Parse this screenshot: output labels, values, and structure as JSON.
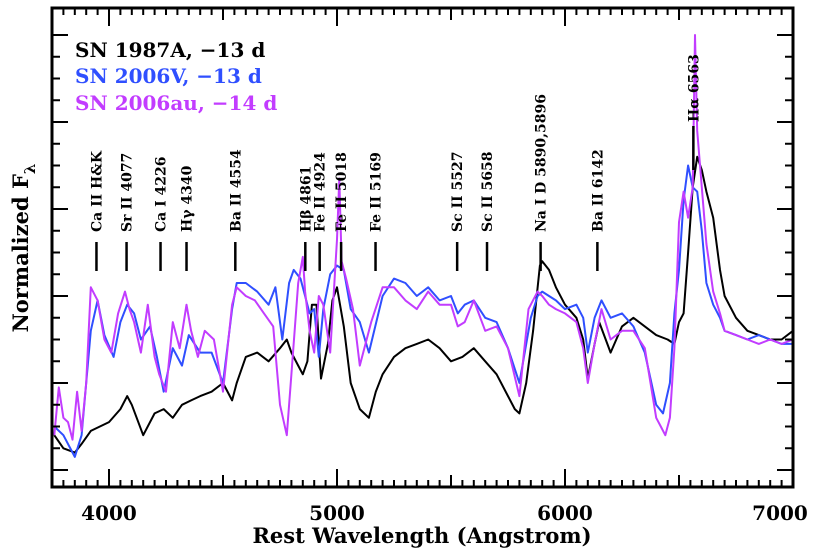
{
  "chart_data": {
    "type": "line",
    "title": "",
    "xlabel": "Rest Wavelength (Angstrom)",
    "ylabel": "Normalized F",
    "ylabel_subscript": "λ",
    "xlim": [
      3750,
      7000
    ],
    "ylim": [
      0,
      1
    ],
    "xticks": [
      {
        "value": 4000,
        "label": "4000"
      },
      {
        "value": 5000,
        "label": "5000"
      },
      {
        "value": 6000,
        "label": "6000"
      },
      {
        "value": 7000,
        "label": "7000"
      }
    ],
    "legend_position": "top-left",
    "series": [
      {
        "name": "SN 1987A, −13 d",
        "color": "#000000",
        "x": [
          3760,
          3800,
          3850,
          3880,
          3920,
          3960,
          4000,
          4050,
          4080,
          4100,
          4150,
          4200,
          4240,
          4280,
          4320,
          4360,
          4400,
          4450,
          4500,
          4540,
          4560,
          4600,
          4650,
          4700,
          4750,
          4780,
          4800,
          4830,
          4850,
          4870,
          4890,
          4910,
          4930,
          4960,
          4980,
          5000,
          5030,
          5060,
          5100,
          5140,
          5170,
          5200,
          5250,
          5300,
          5350,
          5400,
          5450,
          5500,
          5550,
          5600,
          5650,
          5700,
          5750,
          5780,
          5800,
          5830,
          5860,
          5890,
          5900,
          5930,
          5960,
          6000,
          6050,
          6080,
          6100,
          6130,
          6150,
          6200,
          6250,
          6300,
          6350,
          6400,
          6450,
          6480,
          6500,
          6520,
          6540,
          6560,
          6580,
          6600,
          6620,
          6650,
          6680,
          6700,
          6750,
          6800,
          6850,
          6900,
          6950,
          7000
        ],
        "y": [
          0.08,
          0.05,
          0.04,
          0.06,
          0.09,
          0.1,
          0.11,
          0.14,
          0.17,
          0.15,
          0.08,
          0.13,
          0.14,
          0.12,
          0.15,
          0.16,
          0.17,
          0.18,
          0.2,
          0.16,
          0.2,
          0.26,
          0.27,
          0.25,
          0.28,
          0.3,
          0.27,
          0.24,
          0.22,
          0.25,
          0.38,
          0.38,
          0.21,
          0.29,
          0.39,
          0.42,
          0.33,
          0.2,
          0.14,
          0.12,
          0.18,
          0.22,
          0.26,
          0.28,
          0.29,
          0.3,
          0.28,
          0.25,
          0.26,
          0.28,
          0.25,
          0.22,
          0.17,
          0.14,
          0.13,
          0.2,
          0.32,
          0.47,
          0.48,
          0.46,
          0.42,
          0.38,
          0.35,
          0.3,
          0.21,
          0.29,
          0.34,
          0.27,
          0.33,
          0.35,
          0.33,
          0.31,
          0.3,
          0.29,
          0.34,
          0.36,
          0.5,
          0.65,
          0.72,
          0.69,
          0.64,
          0.58,
          0.46,
          0.4,
          0.35,
          0.32,
          0.31,
          0.3,
          0.3,
          0.32
        ]
      },
      {
        "name": "SN 2006V, −13 d",
        "color": "#2f4fff",
        "x": [
          3760,
          3800,
          3850,
          3880,
          3920,
          3950,
          3980,
          4020,
          4050,
          4080,
          4110,
          4140,
          4180,
          4210,
          4240,
          4280,
          4320,
          4350,
          4400,
          4450,
          4500,
          4540,
          4560,
          4600,
          4650,
          4700,
          4730,
          4760,
          4790,
          4810,
          4840,
          4860,
          4880,
          4900,
          4920,
          4940,
          4970,
          5000,
          5030,
          5060,
          5100,
          5140,
          5200,
          5250,
          5300,
          5350,
          5400,
          5450,
          5500,
          5530,
          5560,
          5600,
          5650,
          5700,
          5750,
          5800,
          5850,
          5880,
          5900,
          5930,
          5960,
          6000,
          6050,
          6080,
          6100,
          6130,
          6160,
          6200,
          6250,
          6300,
          6350,
          6400,
          6430,
          6460,
          6480,
          6500,
          6520,
          6540,
          6560,
          6580,
          6600,
          6620,
          6650,
          6680,
          6700,
          6750,
          6800,
          6850,
          6900,
          6950,
          7000
        ],
        "y": [
          0.1,
          0.08,
          0.03,
          0.08,
          0.32,
          0.39,
          0.31,
          0.26,
          0.34,
          0.38,
          0.36,
          0.3,
          0.33,
          0.26,
          0.18,
          0.28,
          0.24,
          0.31,
          0.27,
          0.27,
          0.2,
          0.37,
          0.43,
          0.43,
          0.41,
          0.38,
          0.42,
          0.3,
          0.43,
          0.46,
          0.44,
          0.4,
          0.36,
          0.37,
          0.26,
          0.37,
          0.45,
          0.47,
          0.46,
          0.37,
          0.34,
          0.27,
          0.4,
          0.44,
          0.43,
          0.4,
          0.42,
          0.39,
          0.4,
          0.36,
          0.38,
          0.39,
          0.35,
          0.34,
          0.28,
          0.2,
          0.35,
          0.4,
          0.41,
          0.4,
          0.39,
          0.37,
          0.38,
          0.35,
          0.27,
          0.35,
          0.39,
          0.35,
          0.36,
          0.33,
          0.27,
          0.15,
          0.13,
          0.2,
          0.36,
          0.46,
          0.62,
          0.7,
          0.65,
          0.64,
          0.55,
          0.43,
          0.38,
          0.35,
          0.32,
          0.31,
          0.3,
          0.31,
          0.3,
          0.29,
          0.29
        ]
      },
      {
        "name": "SN 2006au, −14 d",
        "color": "#c23cff",
        "x": [
          3760,
          3780,
          3800,
          3820,
          3840,
          3860,
          3880,
          3900,
          3920,
          3950,
          3980,
          4010,
          4040,
          4070,
          4090,
          4110,
          4140,
          4170,
          4200,
          4220,
          4250,
          4280,
          4310,
          4340,
          4360,
          4390,
          4420,
          4460,
          4500,
          4540,
          4560,
          4600,
          4640,
          4680,
          4720,
          4750,
          4780,
          4800,
          4830,
          4850,
          4860,
          4880,
          4900,
          4920,
          4940,
          4970,
          5000,
          5010,
          5020,
          5040,
          5070,
          5100,
          5150,
          5200,
          5250,
          5300,
          5350,
          5400,
          5450,
          5500,
          5530,
          5560,
          5600,
          5650,
          5700,
          5750,
          5800,
          5840,
          5880,
          5900,
          5930,
          5960,
          6000,
          6050,
          6080,
          6100,
          6130,
          6160,
          6200,
          6250,
          6300,
          6350,
          6400,
          6420,
          6440,
          6460,
          6480,
          6500,
          6520,
          6540,
          6560,
          6570,
          6580,
          6600,
          6620,
          6650,
          6680,
          6700,
          6750,
          6800,
          6850,
          6900,
          6950,
          7000
        ],
        "y": [
          0.08,
          0.19,
          0.12,
          0.11,
          0.07,
          0.18,
          0.09,
          0.2,
          0.42,
          0.39,
          0.3,
          0.27,
          0.36,
          0.41,
          0.37,
          0.34,
          0.27,
          0.38,
          0.26,
          0.22,
          0.18,
          0.34,
          0.28,
          0.38,
          0.32,
          0.26,
          0.32,
          0.3,
          0.18,
          0.38,
          0.42,
          0.4,
          0.39,
          0.36,
          0.33,
          0.15,
          0.08,
          0.22,
          0.43,
          0.49,
          0.41,
          0.32,
          0.27,
          0.4,
          0.38,
          0.27,
          0.53,
          0.67,
          0.48,
          0.44,
          0.37,
          0.24,
          0.34,
          0.42,
          0.42,
          0.39,
          0.37,
          0.41,
          0.38,
          0.38,
          0.33,
          0.34,
          0.39,
          0.32,
          0.33,
          0.28,
          0.17,
          0.37,
          0.41,
          0.4,
          0.38,
          0.37,
          0.36,
          0.34,
          0.28,
          0.2,
          0.29,
          0.37,
          0.3,
          0.32,
          0.32,
          0.28,
          0.12,
          0.1,
          0.08,
          0.12,
          0.28,
          0.57,
          0.64,
          0.58,
          0.65,
          1.0,
          0.78,
          0.65,
          0.52,
          0.41,
          0.36,
          0.32,
          0.31,
          0.3,
          0.29,
          0.3,
          0.29,
          0.3
        ]
      }
    ],
    "annotations": [
      {
        "label": "Ca II H&K",
        "x": 3945
      },
      {
        "label": "Sr II 4077",
        "x": 4077
      },
      {
        "label": "Ca I 4226",
        "x": 4226
      },
      {
        "label": "Hγ 4340",
        "x": 4340
      },
      {
        "label": "Ba II 4554",
        "x": 4554
      },
      {
        "label": "Hβ 4861",
        "x": 4861
      },
      {
        "label": "Fe II 4924",
        "x": 4924
      },
      {
        "label": "Fe II 5018",
        "x": 5018
      },
      {
        "label": "Fe II 5169",
        "x": 5169
      },
      {
        "label": "Sc II 5527",
        "x": 5527
      },
      {
        "label": "Sc II 5658",
        "x": 5658
      },
      {
        "label": "Na I D 5890,5896",
        "x": 5893
      },
      {
        "label": "Ba II 6142",
        "x": 6142
      },
      {
        "label": "Hα 6563",
        "x": 6563
      }
    ]
  }
}
